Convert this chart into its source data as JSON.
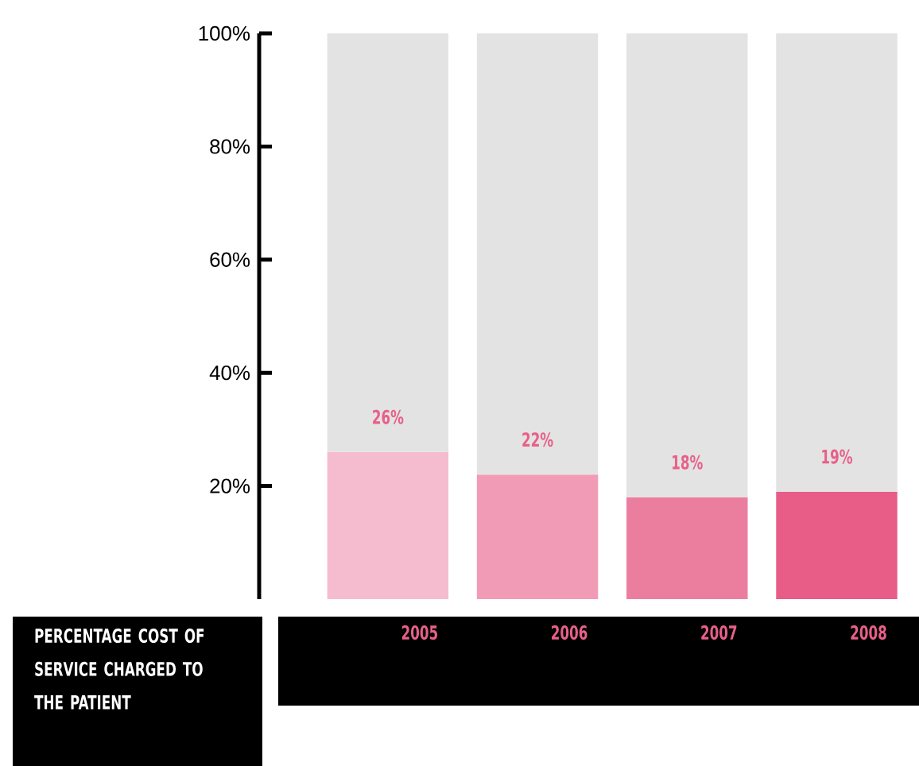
{
  "chart_data": {
    "type": "bar",
    "stacked": true,
    "annotations": [
      "PERCENTAGE COST OF SERVICE CHARGED TO THE PATIENT"
    ],
    "categories": [
      "2005",
      "2006",
      "2007",
      "2008"
    ],
    "series": [
      {
        "colors": [
          "#f5bccf",
          "#f19bb6",
          "#eb7e9f",
          "#e85c88"
        ],
        "values": [
          26,
          22,
          18,
          19
        ],
        "value_labels": [
          "26%",
          "22%",
          "18%",
          "19%"
        ]
      },
      {
        "color": "#e3e3e3",
        "values": [
          74,
          78,
          82,
          81
        ]
      }
    ],
    "ylim": [
      0,
      100
    ],
    "yticks": [
      {
        "value": 20,
        "label": "20%"
      },
      {
        "value": 40,
        "label": "40%"
      },
      {
        "value": 60,
        "label": "60%"
      },
      {
        "value": 80,
        "label": "80%"
      },
      {
        "value": 100,
        "label": "100%"
      }
    ],
    "grid": false
  }
}
